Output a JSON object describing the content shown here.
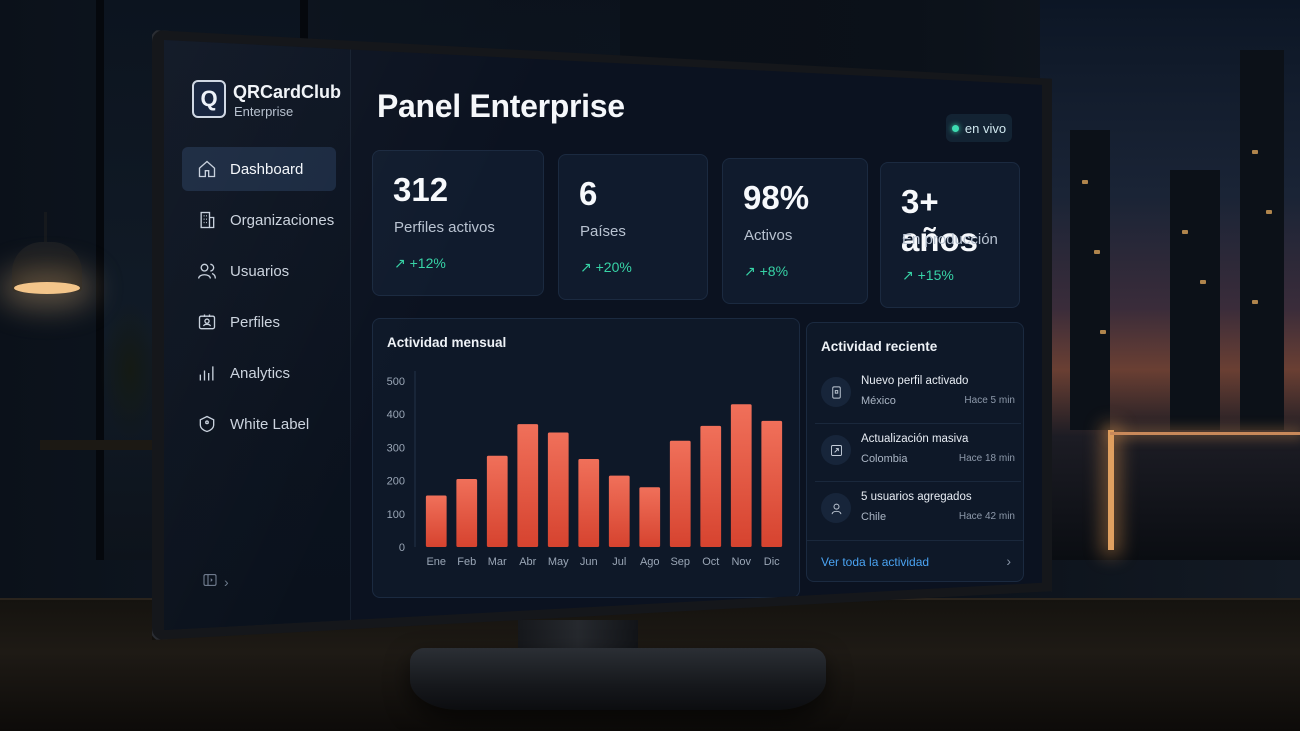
{
  "brand": {
    "logo_letter": "Q",
    "name": "QRCardClub",
    "subtitle": "Enterprise"
  },
  "sidebar": {
    "items": [
      {
        "label": "Dashboard",
        "icon": "home-icon",
        "active": true
      },
      {
        "label": "Organizaciones",
        "icon": "building-icon",
        "active": false
      },
      {
        "label": "Usuarios",
        "icon": "users-icon",
        "active": false
      },
      {
        "label": "Perfiles",
        "icon": "id-card-icon",
        "active": false
      },
      {
        "label": "Analytics",
        "icon": "bar-chart-icon",
        "active": false
      },
      {
        "label": "White Label",
        "icon": "tag-icon",
        "active": false
      }
    ],
    "collapse_icon": "collapse-icon",
    "collapse_chevron": "›"
  },
  "header": {
    "title": "Panel Enterprise",
    "live_badge": "en vivo"
  },
  "stats": [
    {
      "value": "312",
      "label": "Perfiles activos",
      "change": "↗ +12%"
    },
    {
      "value": "6",
      "label": "Países",
      "change": "↗ +20%"
    },
    {
      "value": "98%",
      "label": "Activos",
      "change": "↗ +8%"
    },
    {
      "value": "3+ años",
      "label": "En producción",
      "change": "↗ +15%"
    }
  ],
  "monthly_activity": {
    "title": "Actividad mensual"
  },
  "chart_data": {
    "type": "bar",
    "title": "Actividad mensual",
    "categories": [
      "Ene",
      "Feb",
      "Mar",
      "Abr",
      "May",
      "Jun",
      "Jul",
      "Ago",
      "Sep",
      "Oct",
      "Nov",
      "Dic"
    ],
    "values": [
      155,
      205,
      275,
      370,
      345,
      265,
      215,
      180,
      320,
      365,
      430,
      380
    ],
    "yticks": [
      "0",
      "100",
      "200",
      "300",
      "400",
      "500"
    ],
    "ylim": [
      0,
      500
    ],
    "xlabel": "",
    "ylabel": "",
    "grid": false,
    "bar_color_top": "#f0705a",
    "bar_color_bottom": "#d6432f"
  },
  "recent_activity": {
    "title": "Actividad reciente",
    "items": [
      {
        "title": "Nuevo perfil activado",
        "subtitle": "México",
        "time": "Hace 5 min",
        "icon": "profile-card-icon"
      },
      {
        "title": "Actualización masiva",
        "subtitle": "Colombia",
        "time": "Hace 18 min",
        "icon": "refresh-icon"
      },
      {
        "title": "5 usuarios agregados",
        "subtitle": "Chile",
        "time": "Hace 42 min",
        "icon": "user-icon"
      }
    ],
    "see_all": "Ver toda la actividad",
    "see_all_chevron": "›"
  },
  "colors": {
    "accent_green": "#37d3a6",
    "link_blue": "#4aa3f2",
    "bar": "#e85640"
  }
}
